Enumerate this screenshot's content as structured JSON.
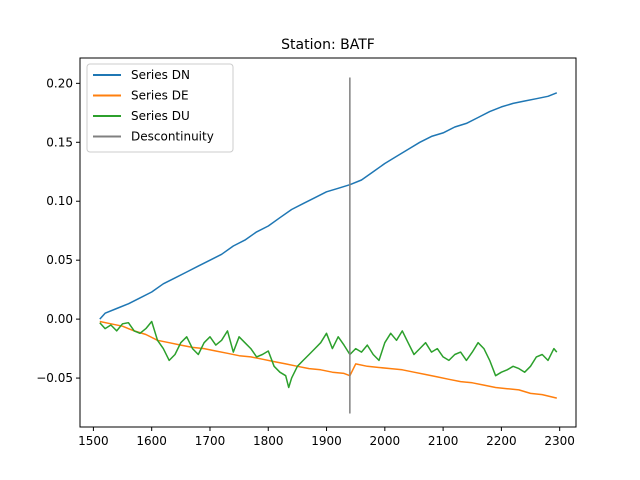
{
  "chart_data": {
    "type": "line",
    "title": "Station: BATF",
    "xlabel": "",
    "ylabel": "",
    "xlim": [
      1477,
      2328
    ],
    "ylim": [
      -0.0915,
      0.2215
    ],
    "x_ticks": [
      1500,
      1600,
      1700,
      1800,
      1900,
      2000,
      2100,
      2200,
      2300
    ],
    "y_ticks": [
      -0.05,
      0.0,
      0.05,
      0.1,
      0.15,
      0.2
    ],
    "y_tick_labels": [
      "−0.05",
      "0.00",
      "0.05",
      "0.10",
      "0.15",
      "0.20"
    ],
    "grid": false,
    "legend_position": "top-left",
    "series": [
      {
        "name": "Series DN",
        "color": "#1f77b4",
        "points": [
          [
            1511,
            0.0
          ],
          [
            1520,
            0.005
          ],
          [
            1540,
            0.009
          ],
          [
            1560,
            0.013
          ],
          [
            1580,
            0.018
          ],
          [
            1600,
            0.023
          ],
          [
            1620,
            0.03
          ],
          [
            1640,
            0.035
          ],
          [
            1660,
            0.04
          ],
          [
            1680,
            0.045
          ],
          [
            1700,
            0.05
          ],
          [
            1720,
            0.055
          ],
          [
            1740,
            0.062
          ],
          [
            1760,
            0.067
          ],
          [
            1780,
            0.074
          ],
          [
            1800,
            0.079
          ],
          [
            1820,
            0.086
          ],
          [
            1840,
            0.093
          ],
          [
            1860,
            0.098
          ],
          [
            1880,
            0.103
          ],
          [
            1900,
            0.108
          ],
          [
            1920,
            0.111
          ],
          [
            1940,
            0.114
          ],
          [
            1960,
            0.118
          ],
          [
            1980,
            0.125
          ],
          [
            2000,
            0.132
          ],
          [
            2020,
            0.138
          ],
          [
            2040,
            0.144
          ],
          [
            2060,
            0.15
          ],
          [
            2080,
            0.155
          ],
          [
            2100,
            0.158
          ],
          [
            2120,
            0.163
          ],
          [
            2140,
            0.166
          ],
          [
            2160,
            0.171
          ],
          [
            2180,
            0.176
          ],
          [
            2200,
            0.18
          ],
          [
            2220,
            0.183
          ],
          [
            2240,
            0.185
          ],
          [
            2260,
            0.187
          ],
          [
            2280,
            0.189
          ],
          [
            2295,
            0.192
          ]
        ]
      },
      {
        "name": "Series DE",
        "color": "#ff7f0e",
        "points": [
          [
            1511,
            -0.002
          ],
          [
            1530,
            -0.004
          ],
          [
            1550,
            -0.006
          ],
          [
            1570,
            -0.01
          ],
          [
            1590,
            -0.013
          ],
          [
            1610,
            -0.018
          ],
          [
            1630,
            -0.02
          ],
          [
            1650,
            -0.022
          ],
          [
            1670,
            -0.024
          ],
          [
            1690,
            -0.025
          ],
          [
            1710,
            -0.027
          ],
          [
            1730,
            -0.029
          ],
          [
            1750,
            -0.031
          ],
          [
            1770,
            -0.032
          ],
          [
            1790,
            -0.034
          ],
          [
            1810,
            -0.036
          ],
          [
            1830,
            -0.038
          ],
          [
            1850,
            -0.04
          ],
          [
            1870,
            -0.042
          ],
          [
            1890,
            -0.043
          ],
          [
            1910,
            -0.045
          ],
          [
            1930,
            -0.046
          ],
          [
            1940,
            -0.048
          ],
          [
            1950,
            -0.038
          ],
          [
            1970,
            -0.04
          ],
          [
            1990,
            -0.041
          ],
          [
            2010,
            -0.042
          ],
          [
            2030,
            -0.043
          ],
          [
            2050,
            -0.045
          ],
          [
            2070,
            -0.047
          ],
          [
            2090,
            -0.049
          ],
          [
            2110,
            -0.051
          ],
          [
            2130,
            -0.053
          ],
          [
            2150,
            -0.054
          ],
          [
            2170,
            -0.056
          ],
          [
            2190,
            -0.058
          ],
          [
            2210,
            -0.059
          ],
          [
            2230,
            -0.06
          ],
          [
            2250,
            -0.063
          ],
          [
            2270,
            -0.064
          ],
          [
            2295,
            -0.067
          ]
        ]
      },
      {
        "name": "Series DU",
        "color": "#2ca02c",
        "points": [
          [
            1511,
            -0.003
          ],
          [
            1520,
            -0.008
          ],
          [
            1530,
            -0.005
          ],
          [
            1540,
            -0.01
          ],
          [
            1550,
            -0.004
          ],
          [
            1560,
            -0.003
          ],
          [
            1570,
            -0.01
          ],
          [
            1580,
            -0.012
          ],
          [
            1590,
            -0.008
          ],
          [
            1600,
            -0.002
          ],
          [
            1610,
            -0.018
          ],
          [
            1620,
            -0.025
          ],
          [
            1630,
            -0.035
          ],
          [
            1640,
            -0.03
          ],
          [
            1650,
            -0.02
          ],
          [
            1660,
            -0.015
          ],
          [
            1670,
            -0.025
          ],
          [
            1680,
            -0.03
          ],
          [
            1690,
            -0.02
          ],
          [
            1700,
            -0.015
          ],
          [
            1710,
            -0.022
          ],
          [
            1720,
            -0.018
          ],
          [
            1730,
            -0.01
          ],
          [
            1740,
            -0.028
          ],
          [
            1750,
            -0.015
          ],
          [
            1760,
            -0.02
          ],
          [
            1770,
            -0.025
          ],
          [
            1780,
            -0.032
          ],
          [
            1790,
            -0.03
          ],
          [
            1800,
            -0.027
          ],
          [
            1810,
            -0.04
          ],
          [
            1820,
            -0.045
          ],
          [
            1830,
            -0.048
          ],
          [
            1835,
            -0.058
          ],
          [
            1840,
            -0.05
          ],
          [
            1850,
            -0.04
          ],
          [
            1860,
            -0.035
          ],
          [
            1870,
            -0.03
          ],
          [
            1880,
            -0.025
          ],
          [
            1890,
            -0.02
          ],
          [
            1900,
            -0.012
          ],
          [
            1910,
            -0.025
          ],
          [
            1920,
            -0.015
          ],
          [
            1930,
            -0.022
          ],
          [
            1940,
            -0.03
          ],
          [
            1950,
            -0.025
          ],
          [
            1960,
            -0.028
          ],
          [
            1970,
            -0.022
          ],
          [
            1980,
            -0.03
          ],
          [
            1990,
            -0.035
          ],
          [
            2000,
            -0.02
          ],
          [
            2010,
            -0.012
          ],
          [
            2020,
            -0.018
          ],
          [
            2030,
            -0.01
          ],
          [
            2040,
            -0.02
          ],
          [
            2050,
            -0.03
          ],
          [
            2060,
            -0.025
          ],
          [
            2070,
            -0.02
          ],
          [
            2080,
            -0.028
          ],
          [
            2090,
            -0.025
          ],
          [
            2100,
            -0.032
          ],
          [
            2110,
            -0.035
          ],
          [
            2120,
            -0.03
          ],
          [
            2130,
            -0.028
          ],
          [
            2140,
            -0.035
          ],
          [
            2150,
            -0.028
          ],
          [
            2160,
            -0.02
          ],
          [
            2170,
            -0.025
          ],
          [
            2180,
            -0.035
          ],
          [
            2190,
            -0.048
          ],
          [
            2200,
            -0.045
          ],
          [
            2210,
            -0.043
          ],
          [
            2220,
            -0.04
          ],
          [
            2230,
            -0.042
          ],
          [
            2240,
            -0.045
          ],
          [
            2250,
            -0.04
          ],
          [
            2260,
            -0.032
          ],
          [
            2270,
            -0.03
          ],
          [
            2280,
            -0.035
          ],
          [
            2290,
            -0.025
          ],
          [
            2295,
            -0.028
          ]
        ]
      }
    ],
    "vlines": [
      {
        "name": "Descontinuity",
        "color": "#808080",
        "x": 1940,
        "ymin": -0.08,
        "ymax": 0.205
      }
    ]
  }
}
